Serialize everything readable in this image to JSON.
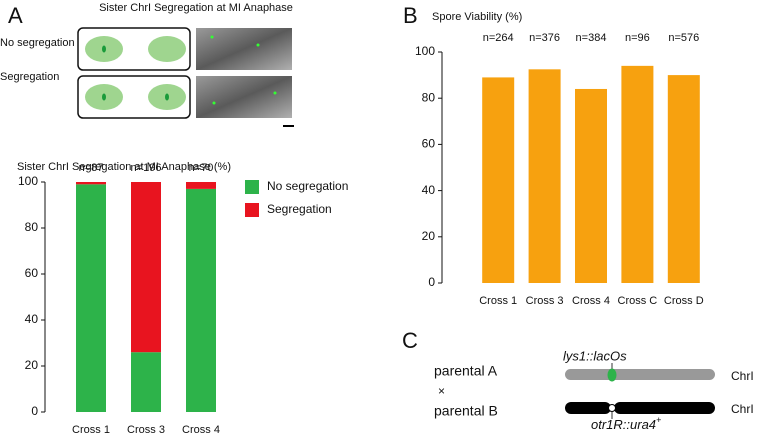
{
  "panel_labels": [
    "A",
    "B",
    "C"
  ],
  "schematic": {
    "title": "Sister ChrI Segregation at MI Anaphase",
    "rows": [
      "No segregation",
      "Segregation"
    ]
  },
  "diagram": {
    "parental_a": "parental A",
    "cross": "×",
    "parental_b": "parental B",
    "locus_a": "lys1::lacOs",
    "locus_b": "otr1R::ura4",
    "locus_b_sup": "+",
    "chromosome_a": "ChrI",
    "chromosome_b": "ChrI"
  },
  "chart_data": [
    {
      "type": "bar",
      "stacked": true,
      "title": "Sister ChrI Segregation at MI Anaphase (%)",
      "categories": [
        "Cross 1",
        "Cross 3",
        "Cross 4"
      ],
      "series": [
        {
          "name": "No segregation",
          "color": "#2db34a",
          "values": [
            99,
            26,
            97
          ]
        },
        {
          "name": "Segregation",
          "color": "#e8141f",
          "values": [
            1,
            74,
            3
          ]
        }
      ],
      "annotations": [
        "n=87",
        "n=196",
        "n=70"
      ],
      "ylim": [
        0,
        100
      ],
      "yticks": [
        0,
        20,
        40,
        60,
        80,
        100
      ]
    },
    {
      "type": "bar",
      "title": "Spore Viability (%)",
      "categories": [
        "Cross 1",
        "Cross 3",
        "Cross 4",
        "Cross C",
        "Cross D"
      ],
      "values": [
        89,
        92.5,
        84,
        94,
        90
      ],
      "color": "#f7a10f",
      "annotations": [
        "n=264",
        "n=376",
        "n=384",
        "n=96",
        "n=576"
      ],
      "ylim": [
        0,
        100
      ],
      "yticks": [
        0,
        20,
        40,
        60,
        80,
        100
      ]
    }
  ]
}
